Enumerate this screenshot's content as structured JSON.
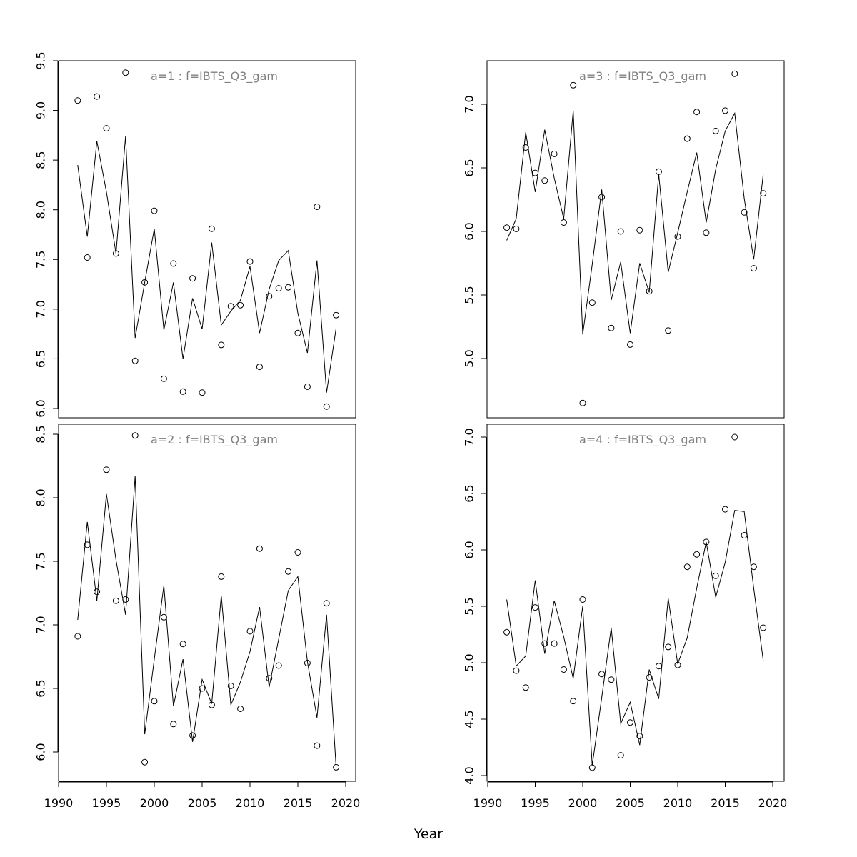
{
  "chart_data": {
    "type": "line",
    "xlabel": "Year",
    "x_ticks": [
      1990,
      1995,
      2000,
      2005,
      2010,
      2015,
      2020
    ],
    "xlim": [
      1990,
      2020
    ],
    "years": [
      1992,
      1993,
      1994,
      1995,
      1996,
      1997,
      1998,
      1999,
      2000,
      2001,
      2002,
      2003,
      2004,
      2005,
      2006,
      2007,
      2008,
      2009,
      2010,
      2011,
      2012,
      2013,
      2014,
      2015,
      2016,
      2017,
      2018,
      2019
    ],
    "panels": [
      {
        "id": "a1",
        "title": "a=1  :  f=IBTS_Q3_gam",
        "ylim": [
          6.0,
          9.5
        ],
        "y_ticks": [
          6.0,
          6.5,
          7.0,
          7.5,
          8.0,
          8.5,
          9.0,
          9.5
        ],
        "y_tick_labels": [
          "6.0",
          "6.5",
          "7.0",
          "7.5",
          "8.0",
          "8.5",
          "9.0",
          "9.5"
        ],
        "series": [
          {
            "style": "points",
            "values": [
              9.1,
              7.52,
              9.14,
              8.82,
              7.56,
              9.38,
              6.48,
              7.27,
              7.99,
              6.3,
              7.46,
              6.17,
              7.31,
              6.16,
              7.81,
              6.64,
              7.03,
              7.04,
              7.48,
              6.42,
              7.13,
              7.21,
              7.22,
              6.76,
              6.22,
              8.03,
              6.02,
              6.94
            ]
          },
          {
            "style": "line",
            "values": [
              8.45,
              7.73,
              8.69,
              8.18,
              7.56,
              8.74,
              6.71,
              7.27,
              7.81,
              6.79,
              7.27,
              6.5,
              7.11,
              6.8,
              7.67,
              6.84,
              6.98,
              7.09,
              7.43,
              6.76,
              7.2,
              7.49,
              7.59,
              6.96,
              6.56,
              7.49,
              6.16,
              6.81
            ]
          }
        ]
      },
      {
        "id": "a2",
        "title": "a=2  :  f=IBTS_Q3_gam",
        "ylim": [
          5.8,
          8.5
        ],
        "y_ticks": [
          6.0,
          6.5,
          7.0,
          7.5,
          8.0,
          8.5
        ],
        "y_tick_labels": [
          "6.0",
          "6.5",
          "7.0",
          "7.5",
          "8.0",
          "8.5"
        ],
        "series": [
          {
            "style": "points",
            "values": [
              6.91,
              7.63,
              7.26,
              8.22,
              7.19,
              7.2,
              8.49,
              5.92,
              6.4,
              7.06,
              6.22,
              6.85,
              6.13,
              6.5,
              6.37,
              7.38,
              6.52,
              6.34,
              6.95,
              7.6,
              6.58,
              6.68,
              7.42,
              7.57,
              6.7,
              6.05,
              7.17,
              5.88
            ]
          },
          {
            "style": "line",
            "values": [
              7.04,
              7.81,
              7.19,
              8.03,
              7.51,
              7.08,
              8.17,
              6.14,
              6.73,
              7.31,
              6.36,
              6.73,
              6.08,
              6.57,
              6.38,
              7.23,
              6.37,
              6.55,
              6.79,
              7.14,
              6.51,
              6.89,
              7.27,
              7.38,
              6.71,
              6.27,
              7.08,
              5.88
            ]
          }
        ]
      },
      {
        "id": "a3",
        "title": "a=3  :  f=IBTS_Q3_gam",
        "ylim": [
          4.65,
          7.25
        ],
        "y_ticks": [
          5.0,
          5.5,
          6.0,
          6.5,
          7.0
        ],
        "y_tick_labels": [
          "5.0",
          "5.5",
          "6.0",
          "6.5",
          "7.0"
        ],
        "series": [
          {
            "style": "points",
            "values": [
              6.03,
              6.02,
              6.66,
              6.46,
              6.4,
              6.61,
              6.07,
              7.15,
              4.65,
              5.44,
              6.27,
              5.24,
              6.0,
              5.11,
              6.01,
              5.53,
              6.47,
              5.22,
              5.96,
              6.73,
              6.94,
              5.99,
              6.79,
              6.95,
              7.24,
              6.15,
              5.71,
              6.3
            ]
          },
          {
            "style": "line",
            "values": [
              5.93,
              6.1,
              6.78,
              6.31,
              6.8,
              6.42,
              6.1,
              6.95,
              5.19,
              5.74,
              6.33,
              5.46,
              5.76,
              5.2,
              5.75,
              5.52,
              6.45,
              5.68,
              5.99,
              6.31,
              6.62,
              6.07,
              6.49,
              6.79,
              6.93,
              6.26,
              5.78,
              6.45
            ]
          }
        ]
      },
      {
        "id": "a4",
        "title": "a=4  :  f=IBTS_Q3_gam",
        "ylim": [
          4.0,
          7.0
        ],
        "y_ticks": [
          4.0,
          4.5,
          5.0,
          5.5,
          6.0,
          6.5,
          7.0
        ],
        "y_tick_labels": [
          "4.0",
          "4.5",
          "5.0",
          "5.5",
          "6.0",
          "6.5",
          "7.0"
        ],
        "series": [
          {
            "style": "points",
            "values": [
              5.27,
              4.93,
              4.78,
              5.49,
              5.17,
              5.17,
              4.94,
              4.66,
              5.56,
              4.07,
              4.9,
              4.85,
              4.18,
              4.47,
              4.35,
              4.87,
              4.97,
              5.14,
              4.98,
              5.85,
              5.96,
              6.07,
              5.77,
              6.36,
              7.0,
              6.13,
              5.85,
              5.31
            ]
          },
          {
            "style": "line",
            "values": [
              5.56,
              4.97,
              5.06,
              5.73,
              5.08,
              5.55,
              5.23,
              4.86,
              5.5,
              4.09,
              4.69,
              5.31,
              4.46,
              4.65,
              4.27,
              4.94,
              4.68,
              5.57,
              4.99,
              5.22,
              5.66,
              6.07,
              5.58,
              5.89,
              6.35,
              6.34,
              5.66,
              5.02
            ]
          }
        ]
      }
    ]
  }
}
